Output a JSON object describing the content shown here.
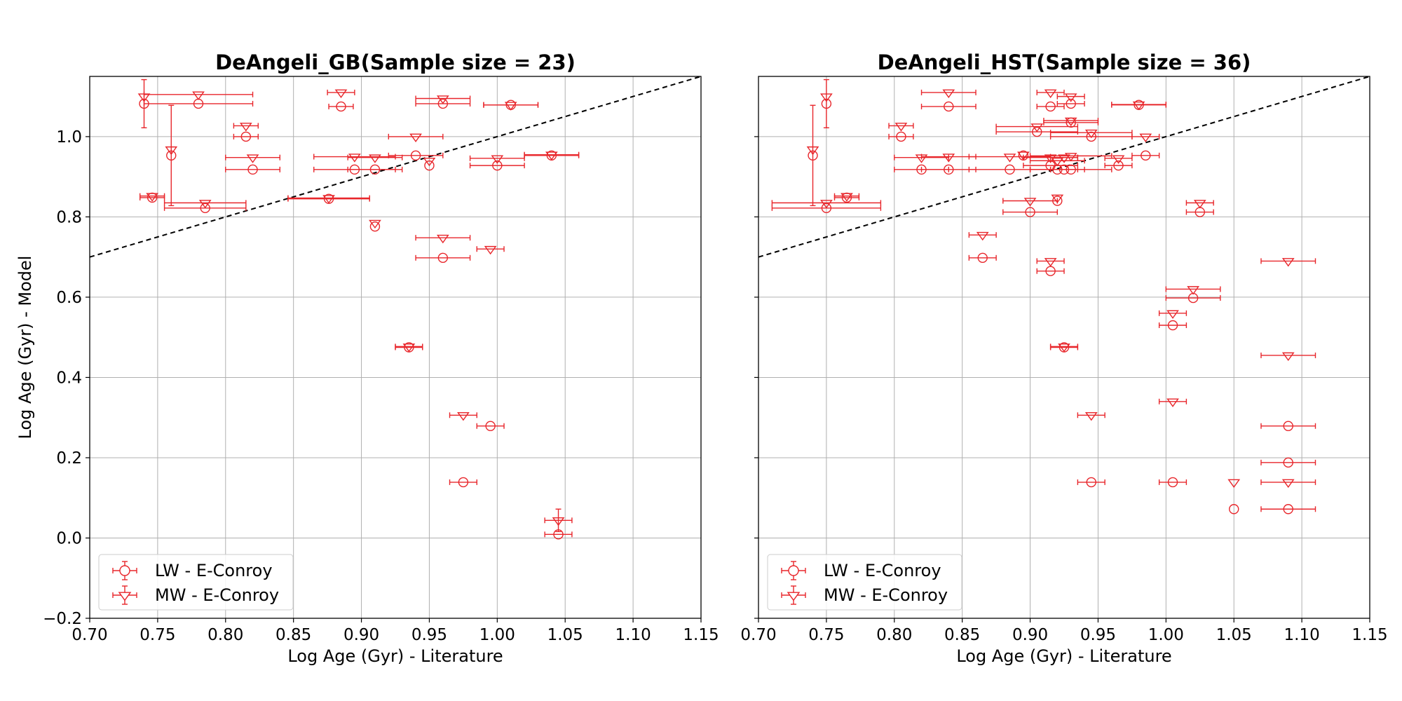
{
  "chart_data": [
    {
      "type": "scatter",
      "title": "DeAngeli_GB(Sample size = 23)",
      "xlabel": "Log Age (Gyr) - Literature",
      "ylabel": "Log Age (Gyr) - Model",
      "xlim": [
        0.7,
        1.15
      ],
      "ylim": [
        -0.2,
        1.15
      ],
      "xticks": [
        "0.70",
        "0.75",
        "0.80",
        "0.85",
        "0.90",
        "0.95",
        "1.00",
        "1.05",
        "1.10",
        "1.15"
      ],
      "yticks": [
        "−0.2",
        "0.0",
        "0.2",
        "0.4",
        "0.6",
        "0.8",
        "1.0"
      ],
      "grid": true,
      "reference_line": "y = x",
      "legend_position": "lower-left",
      "series": [
        {
          "name": "LW - E-Conroy",
          "marker": "circle",
          "color": "#e8262b",
          "points": [
            {
              "x": 0.74,
              "y": 1.082,
              "xerr": 0.0,
              "yerr": 0.06
            },
            {
              "x": 0.78,
              "y": 1.082,
              "xerr": 0.04,
              "yerr": 0.0
            },
            {
              "x": 0.885,
              "y": 1.075,
              "xerr": 0.009,
              "yerr": 0.0
            },
            {
              "x": 0.96,
              "y": 1.082,
              "xerr": 0.02,
              "yerr": 0.0
            },
            {
              "x": 1.01,
              "y": 1.079,
              "xerr": 0.02,
              "yerr": 0.0
            },
            {
              "x": 0.815,
              "y": 1.0,
              "xerr": 0.009,
              "yerr": 0.0
            },
            {
              "x": 0.76,
              "y": 0.953,
              "xerr": 0.0,
              "yerr": 0.125
            },
            {
              "x": 0.82,
              "y": 0.918,
              "xerr": 0.02,
              "yerr": 0.0
            },
            {
              "x": 0.895,
              "y": 0.918,
              "xerr": 0.03,
              "yerr": 0.0
            },
            {
              "x": 0.91,
              "y": 0.918,
              "xerr": 0.02,
              "yerr": 0.0
            },
            {
              "x": 0.94,
              "y": 0.953,
              "xerr": 0.02,
              "yerr": 0.0
            },
            {
              "x": 0.95,
              "y": 0.928,
              "xerr": 0.0,
              "yerr": 0.0
            },
            {
              "x": 1.0,
              "y": 0.928,
              "xerr": 0.02,
              "yerr": 0.0
            },
            {
              "x": 1.04,
              "y": 0.953,
              "xerr": 0.02,
              "yerr": 0.0
            },
            {
              "x": 0.746,
              "y": 0.848,
              "xerr": 0.009,
              "yerr": 0.0
            },
            {
              "x": 0.785,
              "y": 0.822,
              "xerr": 0.03,
              "yerr": 0.0
            },
            {
              "x": 0.876,
              "y": 0.845,
              "xerr": 0.03,
              "yerr": 0.0
            },
            {
              "x": 0.91,
              "y": 0.776,
              "xerr": 0.0,
              "yerr": 0.0
            },
            {
              "x": 0.96,
              "y": 0.698,
              "xerr": 0.02,
              "yerr": 0.0
            },
            {
              "x": 0.935,
              "y": 0.475,
              "xerr": 0.01,
              "yerr": 0.0
            },
            {
              "x": 0.995,
              "y": 0.279,
              "xerr": 0.01,
              "yerr": 0.0
            },
            {
              "x": 0.975,
              "y": 0.139,
              "xerr": 0.01,
              "yerr": 0.0
            },
            {
              "x": 1.045,
              "y": 0.009,
              "xerr": 0.01,
              "yerr": 0.0
            }
          ]
        },
        {
          "name": "MW - E-Conroy",
          "marker": "triangle_down",
          "color": "#e8262b",
          "points": [
            {
              "x": 0.74,
              "y": 1.1,
              "xerr": 0.0,
              "yerr": 0.0
            },
            {
              "x": 0.78,
              "y": 1.105,
              "xerr": 0.04,
              "yerr": 0.0
            },
            {
              "x": 0.885,
              "y": 1.11,
              "xerr": 0.01,
              "yerr": 0.0
            },
            {
              "x": 0.96,
              "y": 1.095,
              "xerr": 0.02,
              "yerr": 0.0
            },
            {
              "x": 1.01,
              "y": 1.079,
              "xerr": 0.02,
              "yerr": 0.0
            },
            {
              "x": 0.815,
              "y": 1.027,
              "xerr": 0.009,
              "yerr": 0.0
            },
            {
              "x": 0.76,
              "y": 0.968,
              "xerr": 0.0,
              "yerr": 0.0
            },
            {
              "x": 0.82,
              "y": 0.948,
              "xerr": 0.02,
              "yerr": 0.0
            },
            {
              "x": 0.895,
              "y": 0.95,
              "xerr": 0.03,
              "yerr": 0.0
            },
            {
              "x": 0.91,
              "y": 0.948,
              "xerr": 0.02,
              "yerr": 0.0
            },
            {
              "x": 0.94,
              "y": 1.0,
              "xerr": 0.02,
              "yerr": 0.0
            },
            {
              "x": 0.95,
              "y": 0.94,
              "xerr": 0.0,
              "yerr": 0.0
            },
            {
              "x": 1.0,
              "y": 0.946,
              "xerr": 0.02,
              "yerr": 0.0
            },
            {
              "x": 1.04,
              "y": 0.955,
              "xerr": 0.02,
              "yerr": 0.0
            },
            {
              "x": 0.746,
              "y": 0.852,
              "xerr": 0.009,
              "yerr": 0.0
            },
            {
              "x": 0.785,
              "y": 0.835,
              "xerr": 0.03,
              "yerr": 0.0
            },
            {
              "x": 0.876,
              "y": 0.847,
              "xerr": 0.03,
              "yerr": 0.0
            },
            {
              "x": 0.91,
              "y": 0.785,
              "xerr": 0.0,
              "yerr": 0.0
            },
            {
              "x": 0.96,
              "y": 0.748,
              "xerr": 0.02,
              "yerr": 0.0
            },
            {
              "x": 0.995,
              "y": 0.72,
              "xerr": 0.01,
              "yerr": 0.0
            },
            {
              "x": 0.935,
              "y": 0.477,
              "xerr": 0.01,
              "yerr": 0.0
            },
            {
              "x": 0.975,
              "y": 0.306,
              "xerr": 0.01,
              "yerr": 0.0
            },
            {
              "x": 1.045,
              "y": 0.044,
              "xerr": 0.01,
              "yerr": 0.028
            }
          ]
        }
      ]
    },
    {
      "type": "scatter",
      "title": "DeAngeli_HST(Sample size = 36)",
      "xlabel": "Log Age (Gyr) - Literature",
      "ylabel": "",
      "xlim": [
        0.7,
        1.15
      ],
      "ylim": [
        -0.2,
        1.15
      ],
      "xticks": [
        "0.70",
        "0.75",
        "0.80",
        "0.85",
        "0.90",
        "0.95",
        "1.00",
        "1.05",
        "1.10",
        "1.15"
      ],
      "yticks": [],
      "grid": true,
      "reference_line": "y = x",
      "legend_position": "lower-left",
      "series": [
        {
          "name": "LW - E-Conroy",
          "marker": "circle",
          "color": "#e8262b",
          "points": [
            {
              "x": 0.75,
              "y": 1.082,
              "xerr": 0.0,
              "yerr": 0.06
            },
            {
              "x": 0.84,
              "y": 1.075,
              "xerr": 0.02,
              "yerr": 0.0
            },
            {
              "x": 0.915,
              "y": 1.075,
              "xerr": 0.01,
              "yerr": 0.0
            },
            {
              "x": 0.93,
              "y": 1.082,
              "xerr": 0.01,
              "yerr": 0.0
            },
            {
              "x": 0.98,
              "y": 1.079,
              "xerr": 0.02,
              "yerr": 0.0
            },
            {
              "x": 0.805,
              "y": 1.0,
              "xerr": 0.009,
              "yerr": 0.0
            },
            {
              "x": 0.905,
              "y": 1.012,
              "xerr": 0.03,
              "yerr": 0.0
            },
            {
              "x": 0.93,
              "y": 1.035,
              "xerr": 0.02,
              "yerr": 0.0
            },
            {
              "x": 0.945,
              "y": 1.0,
              "xerr": 0.03,
              "yerr": 0.0
            },
            {
              "x": 0.74,
              "y": 0.953,
              "xerr": 0.0,
              "yerr": 0.125
            },
            {
              "x": 0.82,
              "y": 0.918,
              "xerr": 0.02,
              "yerr": 0.0
            },
            {
              "x": 0.84,
              "y": 0.918,
              "xerr": 0.02,
              "yerr": 0.0
            },
            {
              "x": 0.885,
              "y": 0.918,
              "xerr": 0.03,
              "yerr": 0.0
            },
            {
              "x": 0.915,
              "y": 0.928,
              "xerr": 0.02,
              "yerr": 0.0
            },
            {
              "x": 0.92,
              "y": 0.918,
              "xerr": 0.02,
              "yerr": 0.0
            },
            {
              "x": 0.925,
              "y": 0.918,
              "xerr": 0.01,
              "yerr": 0.0
            },
            {
              "x": 0.93,
              "y": 0.918,
              "xerr": 0.03,
              "yerr": 0.0
            },
            {
              "x": 0.965,
              "y": 0.928,
              "xerr": 0.01,
              "yerr": 0.0
            },
            {
              "x": 0.985,
              "y": 0.953,
              "xerr": 0.01,
              "yerr": 0.0
            },
            {
              "x": 0.895,
              "y": 0.953,
              "xerr": 0.0,
              "yerr": 0.0
            },
            {
              "x": 0.75,
              "y": 0.822,
              "xerr": 0.04,
              "yerr": 0.0
            },
            {
              "x": 0.765,
              "y": 0.848,
              "xerr": 0.009,
              "yerr": 0.0
            },
            {
              "x": 0.9,
              "y": 0.812,
              "xerr": 0.02,
              "yerr": 0.0
            },
            {
              "x": 0.92,
              "y": 0.84,
              "xerr": 0.0,
              "yerr": 0.0
            },
            {
              "x": 1.025,
              "y": 0.812,
              "xerr": 0.01,
              "yerr": 0.0
            },
            {
              "x": 0.865,
              "y": 0.698,
              "xerr": 0.01,
              "yerr": 0.0
            },
            {
              "x": 0.915,
              "y": 0.665,
              "xerr": 0.01,
              "yerr": 0.0
            },
            {
              "x": 1.02,
              "y": 0.598,
              "xerr": 0.02,
              "yerr": 0.0
            },
            {
              "x": 1.005,
              "y": 0.53,
              "xerr": 0.01,
              "yerr": 0.0
            },
            {
              "x": 0.925,
              "y": 0.475,
              "xerr": 0.01,
              "yerr": 0.0
            },
            {
              "x": 1.09,
              "y": 0.279,
              "xerr": 0.02,
              "yerr": 0.0
            },
            {
              "x": 1.09,
              "y": 0.188,
              "xerr": 0.02,
              "yerr": 0.0
            },
            {
              "x": 0.945,
              "y": 0.139,
              "xerr": 0.01,
              "yerr": 0.0
            },
            {
              "x": 1.005,
              "y": 0.139,
              "xerr": 0.01,
              "yerr": 0.0
            },
            {
              "x": 1.05,
              "y": 0.072,
              "xerr": 0.0,
              "yerr": 0.0
            },
            {
              "x": 1.09,
              "y": 0.072,
              "xerr": 0.02,
              "yerr": 0.0
            }
          ]
        },
        {
          "name": "MW - E-Conroy",
          "marker": "triangle_down",
          "color": "#e8262b",
          "points": [
            {
              "x": 0.75,
              "y": 1.1,
              "xerr": 0.0,
              "yerr": 0.0
            },
            {
              "x": 0.84,
              "y": 1.11,
              "xerr": 0.02,
              "yerr": 0.0
            },
            {
              "x": 0.915,
              "y": 1.11,
              "xerr": 0.01,
              "yerr": 0.0
            },
            {
              "x": 0.93,
              "y": 1.1,
              "xerr": 0.01,
              "yerr": 0.0
            },
            {
              "x": 0.98,
              "y": 1.08,
              "xerr": 0.02,
              "yerr": 0.0
            },
            {
              "x": 0.805,
              "y": 1.027,
              "xerr": 0.009,
              "yerr": 0.0
            },
            {
              "x": 0.905,
              "y": 1.025,
              "xerr": 0.03,
              "yerr": 0.0
            },
            {
              "x": 0.93,
              "y": 1.04,
              "xerr": 0.02,
              "yerr": 0.0
            },
            {
              "x": 0.945,
              "y": 1.01,
              "xerr": 0.03,
              "yerr": 0.0
            },
            {
              "x": 0.985,
              "y": 1.0,
              "xerr": 0.01,
              "yerr": 0.0
            },
            {
              "x": 0.74,
              "y": 0.968,
              "xerr": 0.0,
              "yerr": 0.0
            },
            {
              "x": 0.82,
              "y": 0.948,
              "xerr": 0.02,
              "yerr": 0.0
            },
            {
              "x": 0.84,
              "y": 0.95,
              "xerr": 0.02,
              "yerr": 0.0
            },
            {
              "x": 0.885,
              "y": 0.95,
              "xerr": 0.03,
              "yerr": 0.0
            },
            {
              "x": 0.895,
              "y": 0.955,
              "xerr": 0.0,
              "yerr": 0.0
            },
            {
              "x": 0.915,
              "y": 0.948,
              "xerr": 0.02,
              "yerr": 0.0
            },
            {
              "x": 0.92,
              "y": 0.94,
              "xerr": 0.02,
              "yerr": 0.0
            },
            {
              "x": 0.925,
              "y": 0.948,
              "xerr": 0.01,
              "yerr": 0.0
            },
            {
              "x": 0.93,
              "y": 0.952,
              "xerr": 0.03,
              "yerr": 0.0
            },
            {
              "x": 0.965,
              "y": 0.946,
              "xerr": 0.01,
              "yerr": 0.0
            },
            {
              "x": 0.75,
              "y": 0.835,
              "xerr": 0.04,
              "yerr": 0.0
            },
            {
              "x": 0.765,
              "y": 0.852,
              "xerr": 0.009,
              "yerr": 0.0
            },
            {
              "x": 0.9,
              "y": 0.84,
              "xerr": 0.02,
              "yerr": 0.0
            },
            {
              "x": 0.92,
              "y": 0.848,
              "xerr": 0.0,
              "yerr": 0.0
            },
            {
              "x": 1.025,
              "y": 0.835,
              "xerr": 0.01,
              "yerr": 0.0
            },
            {
              "x": 0.865,
              "y": 0.755,
              "xerr": 0.01,
              "yerr": 0.0
            },
            {
              "x": 0.915,
              "y": 0.69,
              "xerr": 0.01,
              "yerr": 0.0
            },
            {
              "x": 1.09,
              "y": 0.69,
              "xerr": 0.02,
              "yerr": 0.0
            },
            {
              "x": 1.02,
              "y": 0.62,
              "xerr": 0.02,
              "yerr": 0.0
            },
            {
              "x": 1.005,
              "y": 0.56,
              "xerr": 0.01,
              "yerr": 0.0
            },
            {
              "x": 0.925,
              "y": 0.477,
              "xerr": 0.01,
              "yerr": 0.0
            },
            {
              "x": 1.09,
              "y": 0.455,
              "xerr": 0.02,
              "yerr": 0.0
            },
            {
              "x": 1.005,
              "y": 0.34,
              "xerr": 0.01,
              "yerr": 0.0
            },
            {
              "x": 0.945,
              "y": 0.306,
              "xerr": 0.01,
              "yerr": 0.0
            },
            {
              "x": 1.05,
              "y": 0.139,
              "xerr": 0.0,
              "yerr": 0.0
            },
            {
              "x": 1.09,
              "y": 0.139,
              "xerr": 0.02,
              "yerr": 0.0
            }
          ]
        }
      ]
    }
  ]
}
